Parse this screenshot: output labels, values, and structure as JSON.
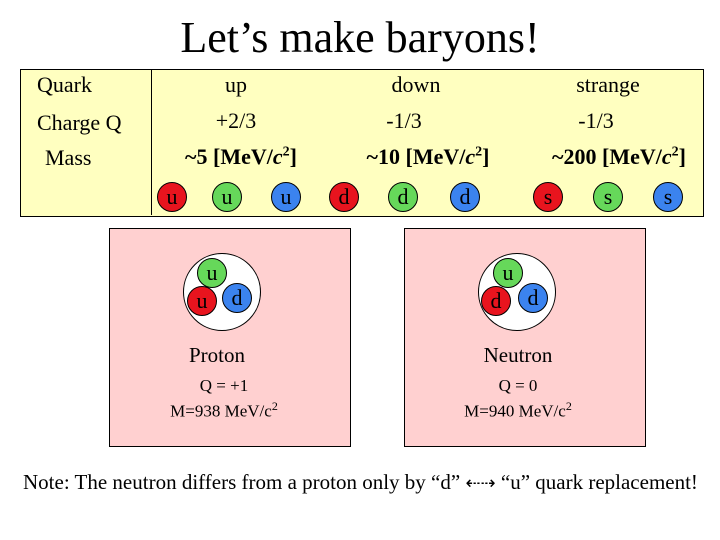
{
  "title": "Let’s make baryons!",
  "table": {
    "row_labels": [
      "Quark",
      "Charge Q",
      "Mass"
    ],
    "flavors": [
      {
        "name": "up",
        "charge": "+2/3",
        "mass": "~5 [MeV/c2]",
        "mass_pre": "~5 [MeV/",
        "mass_c": "c",
        "mass_sup": "2",
        "mass_post": "]"
      },
      {
        "name": "down",
        "charge": "-1/3",
        "mass": "~10 [MeV/c2]",
        "mass_pre": "~10 [MeV/",
        "mass_c": "c",
        "mass_sup": "2",
        "mass_post": "]"
      },
      {
        "name": "strange",
        "charge": "-1/3",
        "mass": "~200 [MeV/c2]",
        "mass_pre": "~200 [MeV/",
        "mass_c": "c",
        "mass_sup": "2",
        "mass_post": "]"
      }
    ],
    "quarks": [
      {
        "symbol": "u",
        "color": "red"
      },
      {
        "symbol": "u",
        "color": "green"
      },
      {
        "symbol": "u",
        "color": "blue"
      },
      {
        "symbol": "d",
        "color": "red"
      },
      {
        "symbol": "d",
        "color": "green"
      },
      {
        "symbol": "d",
        "color": "blue"
      },
      {
        "symbol": "s",
        "color": "red"
      },
      {
        "symbol": "s",
        "color": "green"
      },
      {
        "symbol": "s",
        "color": "blue"
      }
    ]
  },
  "colors": {
    "red": "#e8141e",
    "green": "#66d85a",
    "blue": "#3b83ef",
    "table_bg": "#ffffc0",
    "panel_bg": "#ffd0d0"
  },
  "proton": {
    "quarks": [
      {
        "symbol": "u",
        "color": "green"
      },
      {
        "symbol": "u",
        "color": "red"
      },
      {
        "symbol": "d",
        "color": "blue"
      }
    ],
    "name": "Proton",
    "charge": "Q = +1",
    "mass": "M=938 MeV/c2",
    "mass_pre": "M=938 MeV/c",
    "mass_sup": "2"
  },
  "neutron": {
    "quarks": [
      {
        "symbol": "u",
        "color": "green"
      },
      {
        "symbol": "d",
        "color": "red"
      },
      {
        "symbol": "d",
        "color": "blue"
      }
    ],
    "name": "Neutron",
    "charge": "Q = 0",
    "mass": "M=940 MeV/c2",
    "mass_pre": "M=940 MeV/c",
    "mass_sup": "2"
  },
  "note": {
    "pre": "Note: The neutron differs from a proton only by “d”",
    "arrows": "⇠⇢",
    "post": "“u” quark replacement!"
  }
}
